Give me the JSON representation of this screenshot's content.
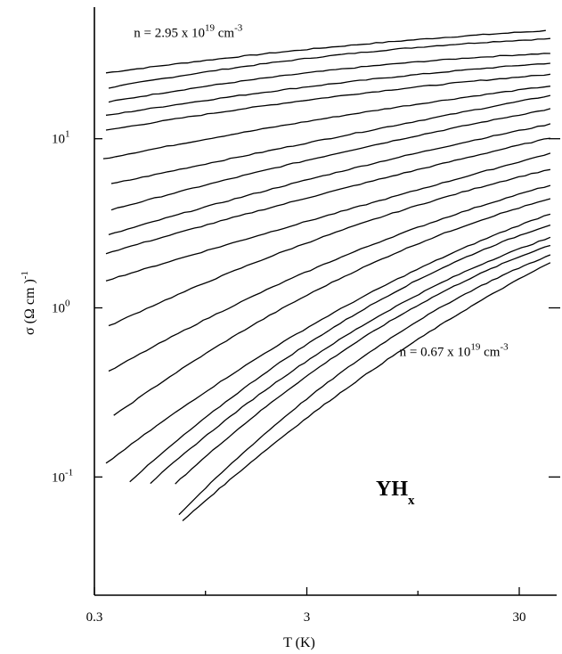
{
  "chart_data": {
    "type": "line",
    "x_scale": "log",
    "y_scale": "log",
    "xlim": [
      0.3,
      45
    ],
    "ylim": [
      0.02,
      60
    ],
    "grid": false,
    "x_ticks": [
      {
        "value": 0.3,
        "label": "0.3"
      },
      {
        "value": 3,
        "label": "3"
      },
      {
        "value": 30,
        "label": "30"
      }
    ],
    "y_ticks": [
      {
        "value": 0.1,
        "base": "10",
        "exp": "-1"
      },
      {
        "value": 1,
        "base": "10",
        "exp": "0"
      },
      {
        "value": 10,
        "base": "10",
        "exp": "1"
      }
    ],
    "xlabel": "T (K)",
    "ylabel": {
      "main": "σ (Ω cm )",
      "exp": "-1"
    },
    "compound": {
      "main": "YH",
      "sub": "x"
    },
    "annotations": [
      {
        "text": "n = 2.95 x 10",
        "sup": "19",
        "unit": " cm",
        "unit_sup": "-3",
        "x": 0.46,
        "y": 40
      },
      {
        "text": "n = 0.67 x 10",
        "sup": "19",
        "unit": " cm",
        "unit_sup": "-3",
        "x": 8.2,
        "y": 0.52
      }
    ],
    "series": [
      {
        "x": [
          0.34,
          2.0,
          40.0
        ],
        "y": [
          24.5,
          32,
          43.5
        ]
      },
      {
        "x": [
          0.35,
          2.0,
          42.0
        ],
        "y": [
          20.0,
          28,
          39
        ]
      },
      {
        "x": [
          0.35,
          2.0,
          42.0
        ],
        "y": [
          16.5,
          23,
          32
        ]
      },
      {
        "x": [
          0.34,
          2.0,
          42.0
        ],
        "y": [
          13.7,
          19,
          28
        ]
      },
      {
        "x": [
          0.34,
          2.0,
          42.0
        ],
        "y": [
          11.2,
          15.8,
          24
        ]
      },
      {
        "x": [
          0.33,
          2.0,
          42.0
        ],
        "y": [
          7.6,
          11.6,
          20.5
        ]
      },
      {
        "x": [
          0.36,
          2.0,
          42.0
        ],
        "y": [
          5.4,
          8.5,
          18
        ]
      },
      {
        "x": [
          0.36,
          2.0,
          42.0
        ],
        "y": [
          3.8,
          6.6,
          15
        ]
      },
      {
        "x": [
          0.35,
          2.0,
          42.0
        ],
        "y": [
          2.7,
          5.0,
          12.2
        ]
      },
      {
        "x": [
          0.34,
          2.0,
          42.0
        ],
        "y": [
          2.1,
          3.9,
          10.1
        ]
      },
      {
        "x": [
          0.34,
          2.0,
          42.0
        ],
        "y": [
          1.45,
          2.8,
          8.2
        ]
      },
      {
        "x": [
          0.35,
          2.0,
          42.0
        ],
        "y": [
          0.78,
          2.0,
          6.6
        ]
      },
      {
        "x": [
          0.35,
          2.0,
          42.0
        ],
        "y": [
          0.42,
          1.3,
          5.3
        ]
      },
      {
        "x": [
          0.37,
          2.0,
          42.0
        ],
        "y": [
          0.23,
          0.9,
          4.4
        ]
      },
      {
        "x": [
          0.34,
          2.0,
          42.0
        ],
        "y": [
          0.12,
          0.56,
          3.6
        ]
      },
      {
        "x": [
          0.44,
          2.0,
          42.0
        ],
        "y": [
          0.094,
          0.43,
          3.1
        ]
      },
      {
        "x": [
          0.55,
          2.0,
          42.0
        ],
        "y": [
          0.092,
          0.34,
          2.6
        ]
      },
      {
        "x": [
          0.72,
          2.0,
          42.0
        ],
        "y": [
          0.091,
          0.27,
          2.35
        ]
      },
      {
        "x": [
          0.75,
          2.0,
          42.0
        ],
        "y": [
          0.06,
          0.19,
          2.05
        ]
      },
      {
        "x": [
          0.78,
          2.0,
          42.0
        ],
        "y": [
          0.055,
          0.15,
          1.85
        ]
      }
    ]
  }
}
